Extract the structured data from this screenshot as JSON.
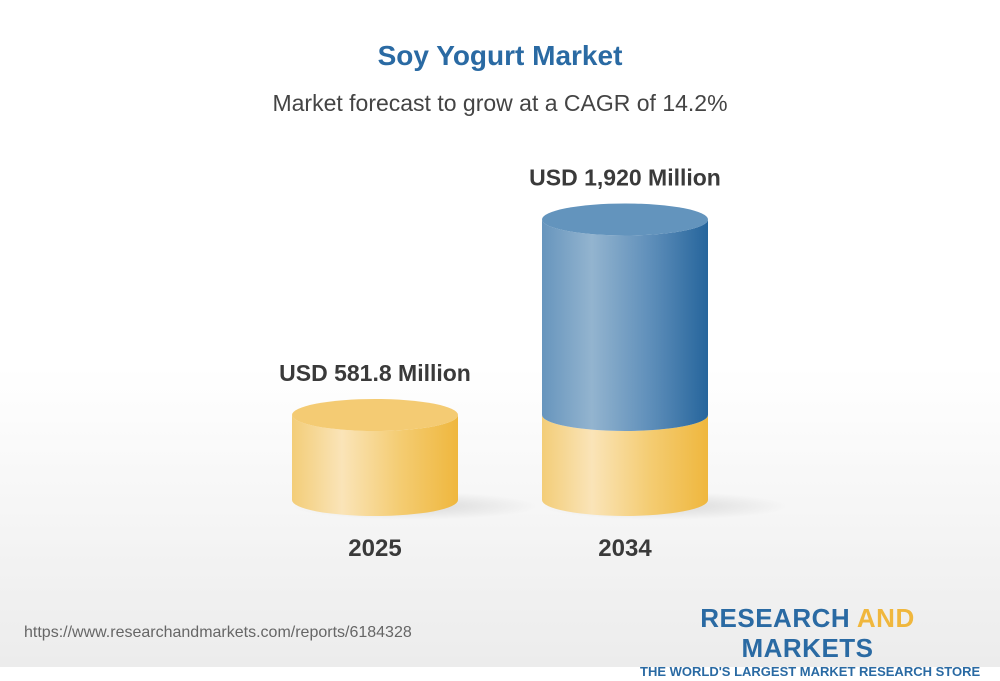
{
  "title": "Soy Yogurt Market",
  "subtitle": "Market forecast to grow at a CAGR of 14.2%",
  "footer": {
    "url": "https://www.researchandmarkets.com/reports/6184328",
    "logo_line1_a": "RESEARCH ",
    "logo_line1_b": "AND",
    "logo_line1_c": " MARKETS",
    "logo_line2": "THE WORLD'S LARGEST MARKET RESEARCH STORE"
  },
  "colors": {
    "title": "#2a6aa3",
    "base": "#f3c25a",
    "growth": "#2b6aa0"
  },
  "chart_data": {
    "type": "bar",
    "style": "3d-cylinder",
    "title": "Soy Yogurt Market",
    "categories": [
      "2025",
      "2034"
    ],
    "values": [
      581.8,
      1920
    ],
    "unit": "USD Million",
    "data_labels": [
      "USD 581.8 Million",
      "USD 1,920 Million"
    ],
    "grid": false
  }
}
